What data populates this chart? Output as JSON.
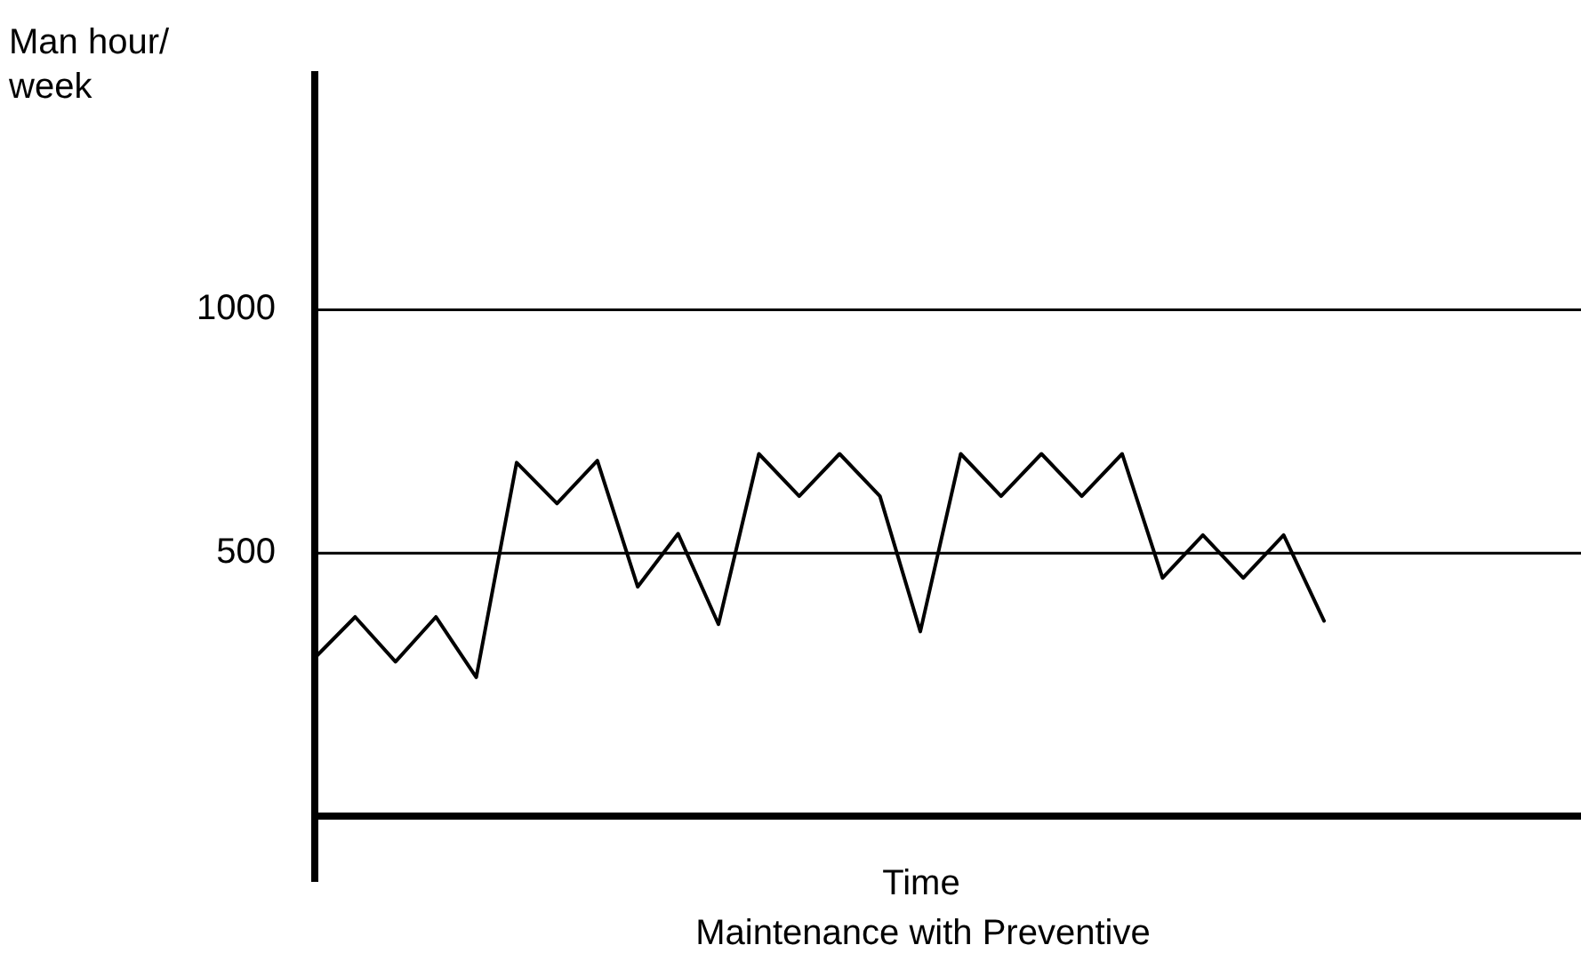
{
  "chart_data": {
    "type": "line",
    "title": "Maintenance with Preventive",
    "xlabel": "Time",
    "ylabel": "Man hour/ week",
    "categories": [
      null,
      null,
      null,
      null,
      null,
      null,
      null,
      null,
      null,
      null,
      null,
      null,
      null,
      null,
      null,
      null,
      null,
      null,
      null,
      null,
      null,
      null,
      null,
      null,
      null,
      null,
      null,
      null,
      null,
      null,
      null
    ],
    "series": [
      {
        "color": "#000000",
        "values": [
          285,
          369,
          277,
          369,
          245,
          686,
          602,
          690,
          431,
          540,
          354,
          704,
          617,
          704,
          617,
          339,
          704,
          617,
          704,
          617,
          704,
          449,
          537,
          449,
          537,
          361,
          null,
          null,
          null,
          null,
          null
        ]
      }
    ],
    "ylim": [
      -40,
      1490
    ],
    "yticks": [
      500,
      1000
    ],
    "grid": "y",
    "tick_labels": "y",
    "marker": "none",
    "line_style": "solid"
  }
}
